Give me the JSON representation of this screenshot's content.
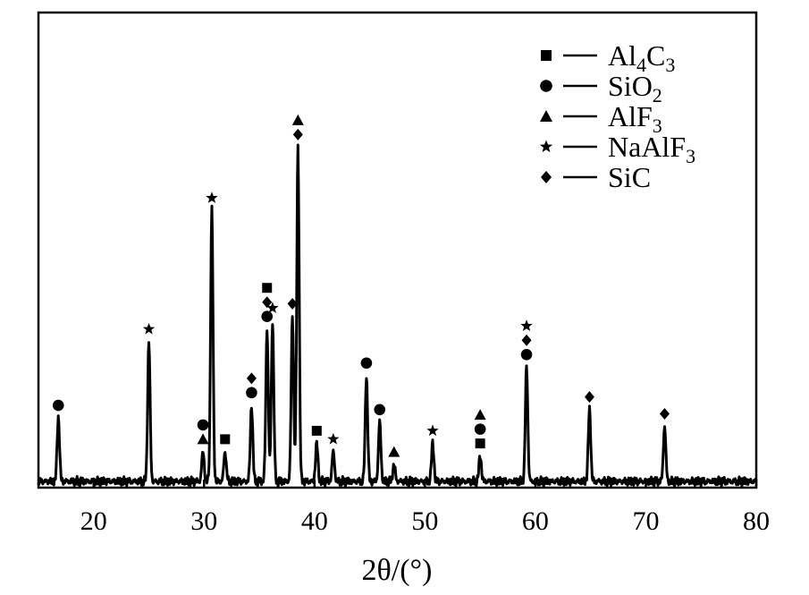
{
  "chart_data": {
    "type": "line",
    "title": "",
    "xlabel": "2θ/(°)",
    "ylabel": "",
    "xlim": [
      15,
      80
    ],
    "x_ticks": [
      20,
      30,
      40,
      50,
      60,
      70,
      80
    ],
    "y_ticks": [],
    "grid": false,
    "legend_position": "top-right",
    "baseline": 2,
    "peaks": [
      {
        "x": 16.8,
        "y": 17,
        "markers": [
          "SiO2"
        ]
      },
      {
        "x": 25.0,
        "y": 35,
        "markers": [
          "NaAlF3"
        ]
      },
      {
        "x": 29.9,
        "y": 9,
        "markers": [
          "AlF3",
          "SiO2"
        ]
      },
      {
        "x": 30.7,
        "y": 66,
        "markers": [
          "NaAlF3"
        ]
      },
      {
        "x": 31.9,
        "y": 9,
        "markers": [
          "Al4C3"
        ]
      },
      {
        "x": 34.3,
        "y": 20,
        "markers": [
          "SiO2",
          "SiC"
        ]
      },
      {
        "x": 35.7,
        "y": 38,
        "markers": [
          "SiO2",
          "SiC",
          "Al4C3"
        ]
      },
      {
        "x": 36.2,
        "y": 40,
        "markers": [
          "NaAlF3"
        ]
      },
      {
        "x": 38.0,
        "y": 41,
        "markers": [
          "SiC"
        ]
      },
      {
        "x": 38.5,
        "y": 81,
        "markers": [
          "SiC",
          "AlF3"
        ]
      },
      {
        "x": 40.2,
        "y": 11,
        "markers": [
          "Al4C3"
        ]
      },
      {
        "x": 41.7,
        "y": 9,
        "markers": [
          "NaAlF3"
        ]
      },
      {
        "x": 44.7,
        "y": 27,
        "markers": [
          "SiO2"
        ]
      },
      {
        "x": 45.9,
        "y": 16,
        "markers": [
          "SiO2"
        ]
      },
      {
        "x": 47.2,
        "y": 6,
        "markers": [
          "AlF3"
        ]
      },
      {
        "x": 50.7,
        "y": 11,
        "markers": [
          "NaAlF3"
        ]
      },
      {
        "x": 55.0,
        "y": 8,
        "markers": [
          "Al4C3",
          "SiO2",
          "AlF3"
        ]
      },
      {
        "x": 59.2,
        "y": 29,
        "markers": [
          "SiO2",
          "SiC",
          "NaAlF3"
        ]
      },
      {
        "x": 64.9,
        "y": 19,
        "markers": [
          "SiC"
        ]
      },
      {
        "x": 71.7,
        "y": 15,
        "markers": [
          "SiC"
        ]
      }
    ],
    "series": [
      {
        "name": "Al4C3",
        "marker": "square"
      },
      {
        "name": "SiO2",
        "marker": "circle"
      },
      {
        "name": "AlF3",
        "marker": "triangle"
      },
      {
        "name": "NaAlF3",
        "marker": "star"
      },
      {
        "name": "SiC",
        "marker": "diamond"
      }
    ],
    "legend": [
      {
        "base": "Al",
        "sub": "4",
        "rest": "C",
        "sub2": "3",
        "marker": "square"
      },
      {
        "base": "SiO",
        "sub": "2",
        "rest": "",
        "sub2": "",
        "marker": "circle"
      },
      {
        "base": "AlF",
        "sub": "3",
        "rest": "",
        "sub2": "",
        "marker": "triangle"
      },
      {
        "base": "NaAlF",
        "sub": "3",
        "rest": "",
        "sub2": "",
        "marker": "star"
      },
      {
        "base": "SiC",
        "sub": "",
        "rest": "",
        "sub2": "",
        "marker": "diamond"
      }
    ],
    "colors": {
      "line": "#000000",
      "marker": "#000000",
      "background": "#ffffff"
    }
  }
}
